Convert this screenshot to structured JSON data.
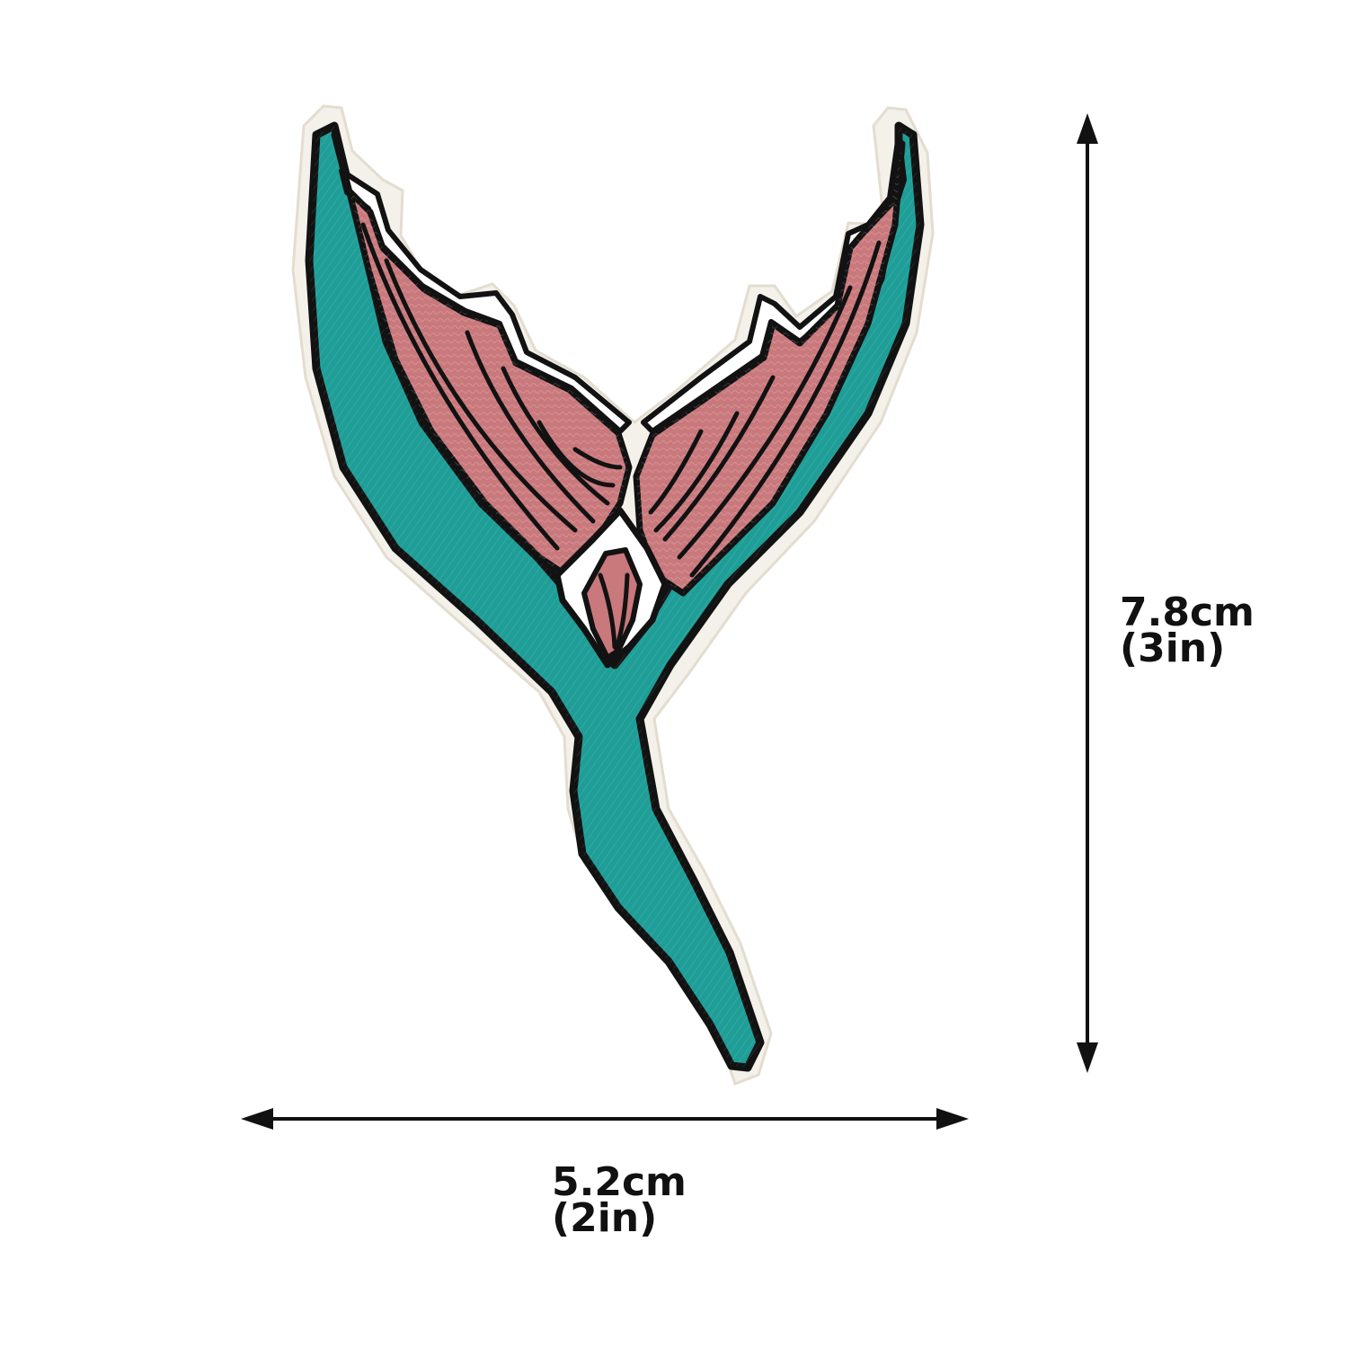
{
  "product": {
    "icon": "mermaid-tail-embroidered-patch",
    "colors": {
      "fin_pink": "#c9787c",
      "fin_pink_dark": "#b26468",
      "body_teal": "#1f9e98",
      "body_teal_dark": "#188580",
      "outline": "#121212",
      "edge_white": "#f4f1ea",
      "stitch_white": "#ffffff"
    }
  },
  "dimensions": {
    "height": {
      "metric": "7.8cm",
      "imperial": "(3in)"
    },
    "width": {
      "metric": "5.2cm",
      "imperial": "(2in)"
    },
    "line_color": "#111111"
  }
}
